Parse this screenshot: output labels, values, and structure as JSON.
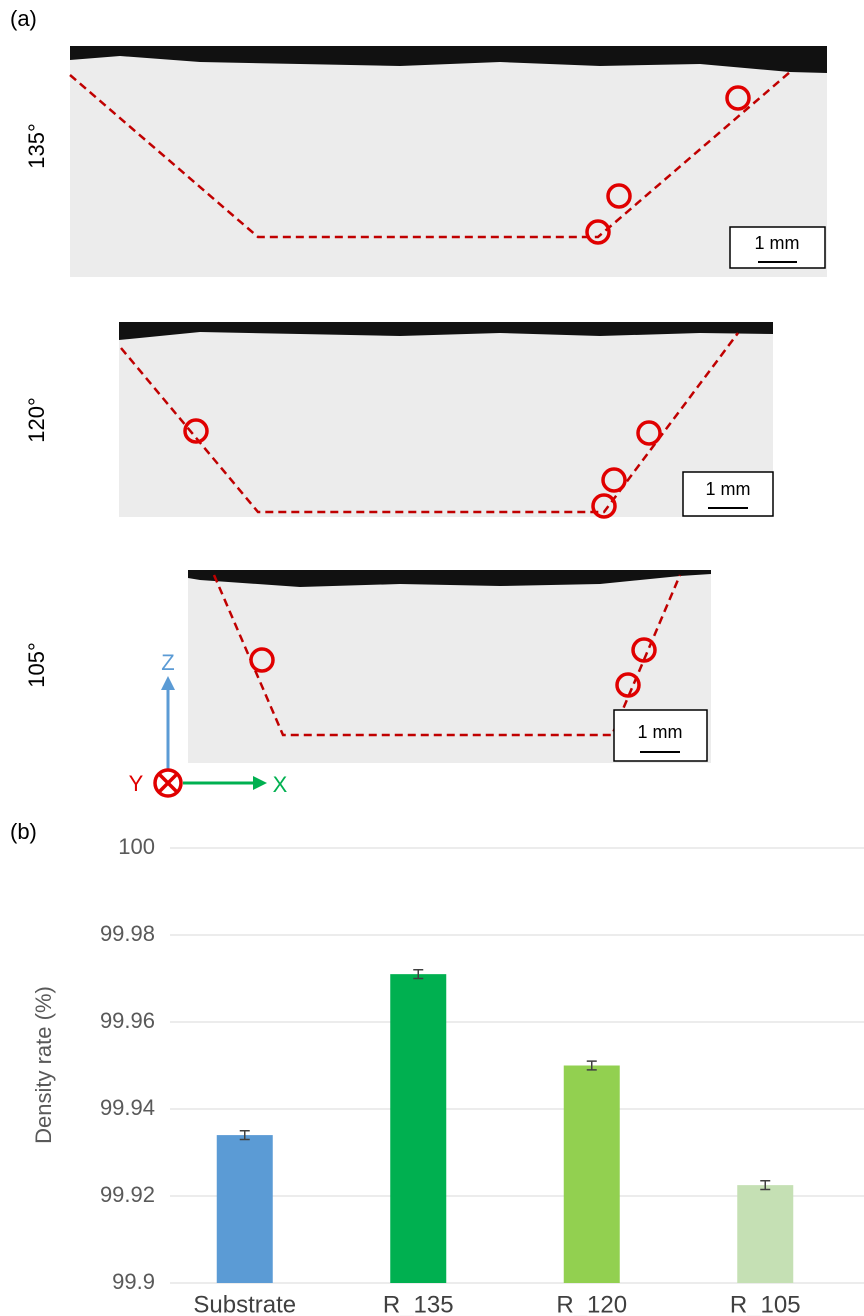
{
  "panel_a": {
    "label": "(a)",
    "samples": [
      {
        "angle": "135°",
        "scale": "1 mm"
      },
      {
        "angle": "120°",
        "scale": "1 mm"
      },
      {
        "angle": "105°",
        "scale": "1 mm"
      }
    ],
    "axes": {
      "z": "Z",
      "y": "Y",
      "x": "X"
    }
  },
  "chart_data": {
    "type": "bar",
    "panel_label": "(b)",
    "y_label": "Density rate (%)",
    "categories": [
      "Substrate",
      "R_135",
      "R_120",
      "R_105"
    ],
    "values": [
      99.934,
      99.971,
      99.95,
      99.9225
    ],
    "errors": [
      0.001,
      0.001,
      0.001,
      0.001
    ],
    "colors": [
      "#5b9bd5",
      "#00b050",
      "#92d050",
      "#c5e0b4"
    ],
    "ylim": [
      99.9,
      100
    ],
    "yticks": [
      99.9,
      99.92,
      99.94,
      99.96,
      99.98,
      100
    ],
    "grid": true
  }
}
